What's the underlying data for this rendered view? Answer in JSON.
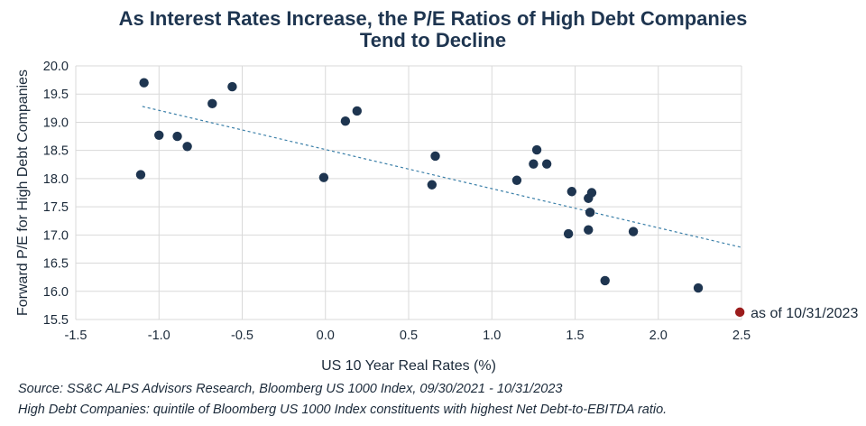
{
  "chart_data": {
    "type": "scatter",
    "title": "As Interest Rates Increase, the P/E Ratios of High Debt Companies",
    "title_line2": "Tend to Decline",
    "xlabel": "US 10 Year Real Rates (%)",
    "ylabel": "Forward P/E for High Debt Companies",
    "xlim": [
      -1.5,
      2.5
    ],
    "ylim": [
      15.5,
      20.0
    ],
    "x_ticks": [
      -1.5,
      -1.0,
      -0.5,
      0.0,
      0.5,
      1.0,
      1.5,
      2.0,
      2.5
    ],
    "x_tick_labels": [
      "-1.5",
      "-1.0",
      "-0.5",
      "0.0",
      "0.5",
      "1.0",
      "1.5",
      "2.0",
      "2.5"
    ],
    "y_ticks": [
      15.5,
      16.0,
      16.5,
      17.0,
      17.5,
      18.0,
      18.5,
      19.0,
      19.5,
      20.0
    ],
    "y_tick_labels": [
      "15.5",
      "16.0",
      "16.5",
      "17.0",
      "17.5",
      "18.0",
      "18.5",
      "19.0",
      "19.5",
      "20.0"
    ],
    "grid": true,
    "point_color": "#1e3550",
    "highlight_color": "#9b1c1c",
    "trend_color": "#3a7fa8",
    "series": [
      {
        "name": "High Debt Companies",
        "points": [
          {
            "x": -1.09,
            "y": 19.7
          },
          {
            "x": -0.56,
            "y": 19.63
          },
          {
            "x": -0.68,
            "y": 19.33
          },
          {
            "x": 0.19,
            "y": 19.2
          },
          {
            "x": 0.12,
            "y": 19.02
          },
          {
            "x": -1.0,
            "y": 18.77
          },
          {
            "x": -0.89,
            "y": 18.75
          },
          {
            "x": -0.83,
            "y": 18.57
          },
          {
            "x": 0.66,
            "y": 18.4
          },
          {
            "x": 1.27,
            "y": 18.51
          },
          {
            "x": 1.25,
            "y": 18.26
          },
          {
            "x": 1.33,
            "y": 18.26
          },
          {
            "x": -1.11,
            "y": 18.07
          },
          {
            "x": -0.01,
            "y": 18.02
          },
          {
            "x": 1.15,
            "y": 17.97
          },
          {
            "x": 0.64,
            "y": 17.89
          },
          {
            "x": 1.48,
            "y": 17.77
          },
          {
            "x": 1.6,
            "y": 17.75
          },
          {
            "x": 1.58,
            "y": 17.65
          },
          {
            "x": 1.59,
            "y": 17.4
          },
          {
            "x": 1.58,
            "y": 17.09
          },
          {
            "x": 1.46,
            "y": 17.02
          },
          {
            "x": 1.85,
            "y": 17.06
          },
          {
            "x": 1.68,
            "y": 16.19
          },
          {
            "x": 2.24,
            "y": 16.06
          }
        ]
      },
      {
        "name": "as of 10/31/2023",
        "points": [
          {
            "x": 2.49,
            "y": 15.63
          }
        ]
      }
    ],
    "trendline": {
      "x": [
        -1.1,
        2.5
      ],
      "y": [
        19.28,
        16.78
      ]
    },
    "annotations": [
      "as of 10/31/2023"
    ]
  },
  "notes": {
    "source": "Source: SS&C ALPS Advisors Research, Bloomberg US 1000 Index, 09/30/2021 - 10/31/2023",
    "definition": "High Debt Companies: quintile of Bloomberg US 1000 Index constituents with highest Net Debt-to-EBITDA ratio."
  }
}
